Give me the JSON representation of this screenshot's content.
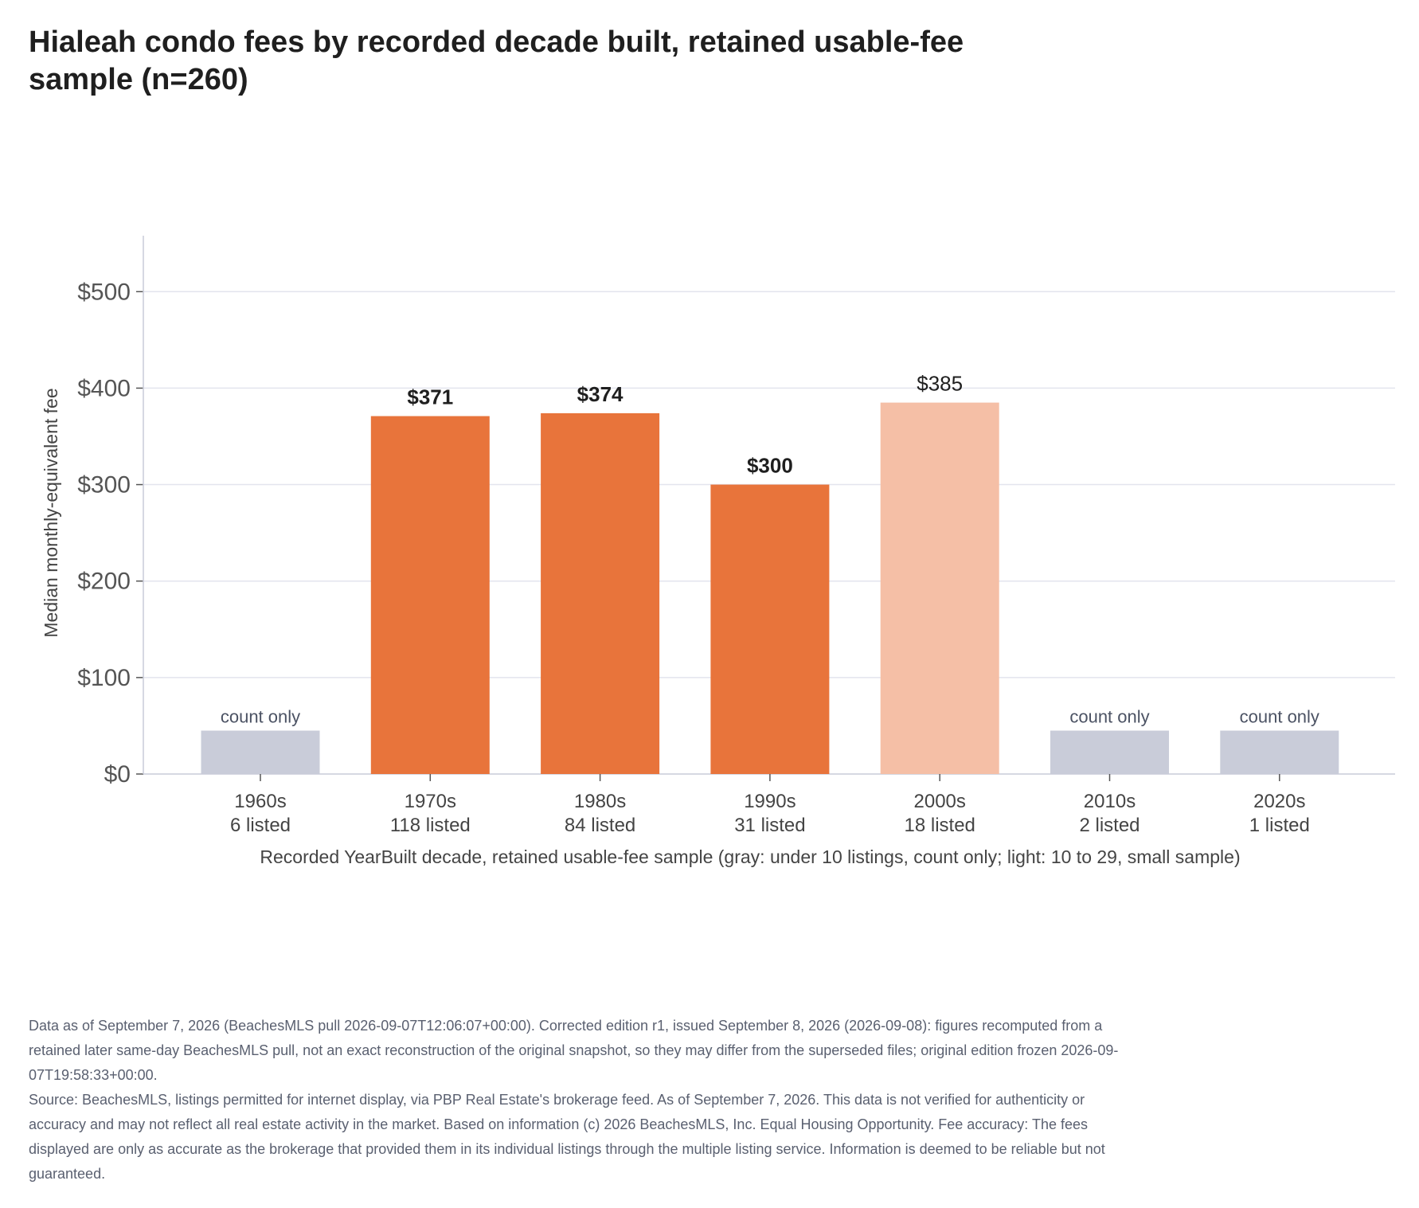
{
  "title": "Hialeah condo fees by recorded decade built, retained usable-fee sample (n=260)",
  "chart_data": {
    "type": "bar",
    "categories": [
      "1960s",
      "1970s",
      "1980s",
      "1990s",
      "2000s",
      "2010s",
      "2020s"
    ],
    "counts": [
      "6 listed",
      "118 listed",
      "84 listed",
      "31 listed",
      "18 listed",
      "2 listed",
      "1 listed"
    ],
    "values": [
      null,
      371,
      374,
      300,
      385,
      null,
      null
    ],
    "tiers": [
      "count-only",
      "full",
      "full",
      "full",
      "small",
      "count-only",
      "count-only"
    ],
    "value_labels": [
      "count only",
      "$371",
      "$374",
      "$300",
      "$385",
      "count only",
      "count only"
    ],
    "ylabel": "Median monthly-equivalent fee",
    "xlabel": "Recorded YearBuilt decade, retained usable-fee sample (gray: under 10 listings, count only; light: 10 to 29, small sample)",
    "ylim": [
      0,
      558
    ],
    "yticks": [
      0,
      100,
      200,
      300,
      400,
      500
    ],
    "ytick_labels": [
      "$0",
      "$100",
      "$200",
      "$300",
      "$400",
      "$500"
    ],
    "grid": true,
    "colors": {
      "full": "#e8743b",
      "small": "#f5bfa6",
      "count-only": "#c9ccd9",
      "grid": "#e3e4ee",
      "axis": "#c9ccd9"
    }
  },
  "footnote": {
    "edition": "Data as of September 7, 2026 (BeachesMLS pull 2026-09-07T12:06:07+00:00). Corrected edition r1, issued September 8, 2026 (2026-09-08): figures recomputed from a retained later same-day BeachesMLS pull, not an exact reconstruction of the original snapshot, so they may differ from the superseded files; original edition frozen 2026-09-07T19:58:33+00:00.",
    "source": "Source: BeachesMLS, listings permitted for internet display, via PBP Real Estate's brokerage feed. As of September 7, 2026. This data is not verified for authenticity or accuracy and may not reflect all real estate activity in the market. Based on information (c) 2026 BeachesMLS, Inc. Equal Housing Opportunity. Fee accuracy: The fees displayed are only as accurate as the brokerage that provided them in its individual listings through the multiple listing service. Information is deemed to be reliable but not guaranteed."
  }
}
